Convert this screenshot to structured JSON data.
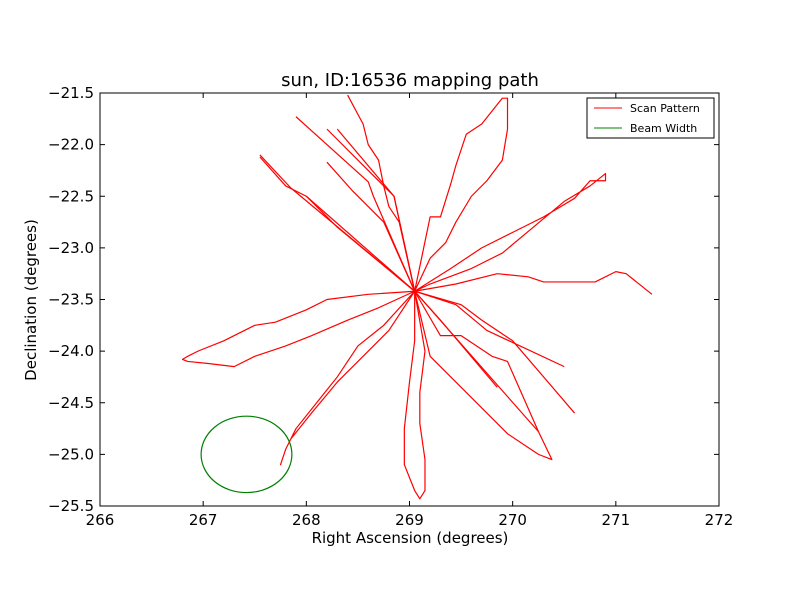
{
  "chart_data": {
    "type": "line",
    "title": "sun, ID:16536 mapping path",
    "xlabel": "Right Ascension (degrees)",
    "ylabel": "Declination (degrees)",
    "xlim": [
      266,
      272
    ],
    "ylim": [
      -25.5,
      -21.5
    ],
    "xticks": [
      "266",
      "267",
      "268",
      "269",
      "270",
      "271",
      "272"
    ],
    "yticks": [
      "−21.5",
      "−22.0",
      "−22.5",
      "−23.0",
      "−23.5",
      "−24.0",
      "−24.5",
      "−25.0",
      "−25.5"
    ],
    "legend_position": "top-right",
    "series": [
      {
        "name": "Scan Pattern",
        "color": "#ff0000",
        "strokes": [
          [
            [
              267.55,
              -22.1
            ],
            [
              267.85,
              -22.42
            ],
            [
              269.05,
              -23.42
            ],
            [
              270.25,
              -24.78
            ],
            [
              270.38,
              -25.05
            ],
            [
              270.25,
              -25.0
            ],
            [
              269.95,
              -24.8
            ],
            [
              269.2,
              -24.05
            ],
            [
              269.05,
              -23.42
            ]
          ],
          [
            [
              267.55,
              -22.12
            ],
            [
              267.8,
              -22.4
            ],
            [
              268.0,
              -22.5
            ],
            [
              269.05,
              -23.42
            ]
          ],
          [
            [
              268.0,
              -22.5
            ],
            [
              268.3,
              -22.8
            ],
            [
              269.05,
              -23.42
            ],
            [
              269.3,
              -23.7
            ],
            [
              269.85,
              -24.35
            ]
          ],
          [
            [
              267.9,
              -21.73
            ],
            [
              268.6,
              -22.36
            ],
            [
              268.65,
              -22.5
            ],
            [
              269.05,
              -23.42
            ],
            [
              269.3,
              -23.85
            ],
            [
              269.5,
              -23.85
            ],
            [
              269.8,
              -24.05
            ],
            [
              269.95,
              -24.1
            ],
            [
              270.25,
              -24.78
            ]
          ],
          [
            [
              268.2,
              -21.85
            ],
            [
              268.85,
              -22.5
            ],
            [
              269.05,
              -23.42
            ],
            [
              269.5,
              -23.55
            ],
            [
              269.7,
              -23.7
            ],
            [
              270.0,
              -23.9
            ],
            [
              270.6,
              -24.6
            ]
          ],
          [
            [
              268.2,
              -22.17
            ],
            [
              268.45,
              -22.45
            ],
            [
              268.75,
              -22.75
            ],
            [
              269.05,
              -23.42
            ],
            [
              269.45,
              -23.55
            ],
            [
              269.75,
              -23.8
            ],
            [
              270.5,
              -24.15
            ]
          ],
          [
            [
              268.3,
              -21.85
            ],
            [
              268.85,
              -22.5
            ],
            [
              269.05,
              -23.42
            ]
          ],
          [
            [
              268.4,
              -21.52
            ],
            [
              268.55,
              -21.8
            ],
            [
              268.6,
              -22.0
            ],
            [
              268.7,
              -22.15
            ],
            [
              268.75,
              -22.4
            ],
            [
              268.8,
              -22.6
            ],
            [
              268.9,
              -22.75
            ],
            [
              269.05,
              -23.42
            ],
            [
              269.05,
              -23.9
            ],
            [
              269.0,
              -24.3
            ],
            [
              268.95,
              -24.75
            ],
            [
              268.95,
              -25.1
            ],
            [
              269.05,
              -25.35
            ],
            [
              269.1,
              -25.43
            ],
            [
              269.15,
              -25.35
            ],
            [
              269.15,
              -25.05
            ],
            [
              269.1,
              -24.7
            ],
            [
              269.1,
              -24.4
            ],
            [
              269.15,
              -24.0
            ],
            [
              269.05,
              -23.42
            ]
          ],
          [
            [
              269.05,
              -23.42
            ],
            [
              269.2,
              -22.7
            ],
            [
              269.3,
              -22.7
            ],
            [
              269.4,
              -22.38
            ],
            [
              269.45,
              -22.2
            ],
            [
              269.55,
              -21.9
            ],
            [
              269.7,
              -21.8
            ],
            [
              269.9,
              -21.55
            ],
            [
              269.95,
              -21.55
            ],
            [
              269.95,
              -21.85
            ],
            [
              269.9,
              -22.15
            ],
            [
              269.75,
              -22.35
            ],
            [
              269.6,
              -22.5
            ],
            [
              269.45,
              -22.75
            ],
            [
              269.35,
              -22.95
            ],
            [
              269.2,
              -23.1
            ],
            [
              269.05,
              -23.42
            ]
          ],
          [
            [
              269.05,
              -23.42
            ],
            [
              269.2,
              -23.35
            ],
            [
              269.6,
              -23.2
            ],
            [
              269.9,
              -23.05
            ],
            [
              270.2,
              -22.8
            ],
            [
              270.5,
              -22.55
            ],
            [
              270.75,
              -22.4
            ],
            [
              270.9,
              -22.28
            ],
            [
              270.9,
              -22.35
            ],
            [
              270.75,
              -22.35
            ],
            [
              270.6,
              -22.52
            ],
            [
              270.3,
              -22.7
            ],
            [
              270.0,
              -22.85
            ],
            [
              269.7,
              -23.0
            ],
            [
              269.4,
              -23.2
            ],
            [
              269.05,
              -23.42
            ]
          ],
          [
            [
              269.05,
              -23.42
            ],
            [
              269.45,
              -23.35
            ],
            [
              269.85,
              -23.25
            ],
            [
              270.15,
              -23.28
            ],
            [
              270.3,
              -23.33
            ],
            [
              270.8,
              -23.33
            ],
            [
              271.0,
              -23.23
            ],
            [
              271.1,
              -23.25
            ],
            [
              271.35,
              -23.45
            ]
          ],
          [
            [
              269.05,
              -23.42
            ],
            [
              268.6,
              -23.45
            ],
            [
              268.2,
              -23.5
            ],
            [
              268.0,
              -23.6
            ],
            [
              267.7,
              -23.72
            ],
            [
              267.5,
              -23.75
            ],
            [
              267.2,
              -23.9
            ],
            [
              266.95,
              -24.0
            ],
            [
              266.85,
              -24.05
            ],
            [
              266.8,
              -24.08
            ],
            [
              266.85,
              -24.1
            ],
            [
              267.05,
              -24.12
            ],
            [
              267.3,
              -24.15
            ],
            [
              267.5,
              -24.05
            ],
            [
              267.8,
              -23.95
            ],
            [
              268.05,
              -23.85
            ],
            [
              268.4,
              -23.7
            ],
            [
              268.7,
              -23.58
            ],
            [
              269.05,
              -23.42
            ]
          ],
          [
            [
              269.05,
              -23.42
            ],
            [
              268.75,
              -23.75
            ],
            [
              268.5,
              -23.95
            ],
            [
              268.3,
              -24.25
            ],
            [
              268.1,
              -24.5
            ],
            [
              267.9,
              -24.75
            ],
            [
              267.8,
              -24.95
            ],
            [
              267.75,
              -25.1
            ],
            [
              267.8,
              -24.95
            ],
            [
              267.85,
              -24.85
            ],
            [
              268.05,
              -24.6
            ],
            [
              268.3,
              -24.3
            ],
            [
              268.55,
              -24.05
            ],
            [
              268.8,
              -23.8
            ],
            [
              269.05,
              -23.42
            ]
          ]
        ]
      },
      {
        "name": "Beam Width",
        "color": "#008000",
        "circle": {
          "center": [
            267.42,
            -25.0
          ],
          "radius_ra": 0.44,
          "radius_dec": 0.37
        }
      }
    ]
  }
}
